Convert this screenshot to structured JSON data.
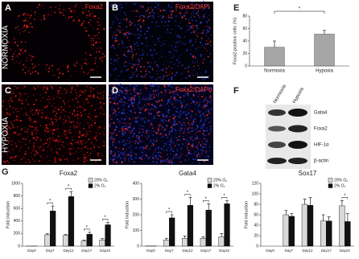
{
  "panels": {
    "letters": [
      "A",
      "B",
      "C",
      "D",
      "E",
      "F",
      "G"
    ],
    "stains": [
      "Foxa2",
      "Foxa2/DAPI",
      "Foxa2/DAPI"
    ],
    "rows": [
      "NORMOXIA",
      "HYPOXIA"
    ],
    "blot": {
      "lanes": [
        "Normoxia",
        "Hypoxia"
      ],
      "proteins": [
        "Gata4",
        "Foxa2",
        "HIF-1α",
        "β-actin"
      ]
    }
  },
  "chart_data": [
    {
      "type": "bar",
      "ylabel": "Foxa2-positive cells (%)",
      "categories": [
        "Normoxia",
        "Hypoxia"
      ],
      "values": [
        30,
        51
      ],
      "error": [
        10,
        6
      ],
      "color": "#a6a6a6",
      "ylim": [
        0,
        80
      ],
      "yticks": [
        0,
        20,
        40,
        60,
        80
      ],
      "annotation": "*"
    },
    {
      "type": "bar",
      "title": "Foxa2",
      "ylabel": "Fold induction",
      "categories": [
        "Day0",
        "Day7",
        "Day12",
        "Day17",
        "Day22"
      ],
      "series": [
        {
          "name": "20% O₂",
          "color": "#d9d9d9",
          "values": [
            1,
            180,
            170,
            80,
            100
          ],
          "error": [
            0,
            20,
            15,
            15,
            20
          ]
        },
        {
          "name": "2% O₂",
          "color": "#111111",
          "values": [
            1,
            560,
            790,
            190,
            340
          ],
          "error": [
            0,
            80,
            80,
            30,
            40
          ]
        }
      ],
      "ylim": [
        0,
        1000
      ],
      "yticks": [
        0,
        200,
        400,
        600,
        800,
        1000
      ],
      "significance": [
        null,
        "*",
        "*",
        "*",
        "*"
      ]
    },
    {
      "type": "bar",
      "title": "Gata4",
      "ylabel": "Fold induction",
      "categories": [
        "Day0",
        "Day7",
        "Day12",
        "Day17",
        "Day22"
      ],
      "series": [
        {
          "name": "20% O₂",
          "color": "#d9d9d9",
          "values": [
            1,
            40,
            50,
            50,
            60
          ],
          "error": [
            0,
            10,
            15,
            10,
            20
          ]
        },
        {
          "name": "2% O₂",
          "color": "#111111",
          "values": [
            1,
            180,
            260,
            230,
            270
          ],
          "error": [
            0,
            20,
            50,
            40,
            20
          ]
        }
      ],
      "ylim": [
        0,
        400
      ],
      "yticks": [
        0,
        100,
        200,
        300,
        400
      ],
      "significance": [
        null,
        "*",
        "*",
        "*",
        "*"
      ]
    },
    {
      "type": "bar",
      "title": "Sox17",
      "ylabel": "Fold induction",
      "categories": [
        "Day0",
        "Day7",
        "Day12",
        "Day17",
        "Day22"
      ],
      "series": [
        {
          "name": "20% O₂",
          "color": "#d9d9d9",
          "values": [
            0,
            60,
            80,
            48,
            77
          ],
          "error": [
            0,
            8,
            10,
            12,
            10
          ]
        },
        {
          "name": "2% O₂",
          "color": "#111111",
          "values": [
            0,
            57,
            78,
            48,
            47
          ],
          "error": [
            0,
            5,
            15,
            8,
            15
          ]
        }
      ],
      "ylim": [
        0,
        120
      ],
      "yticks": [
        0,
        20,
        40,
        60,
        80,
        100,
        120
      ],
      "significance": [
        null,
        null,
        null,
        null,
        "*"
      ]
    }
  ]
}
